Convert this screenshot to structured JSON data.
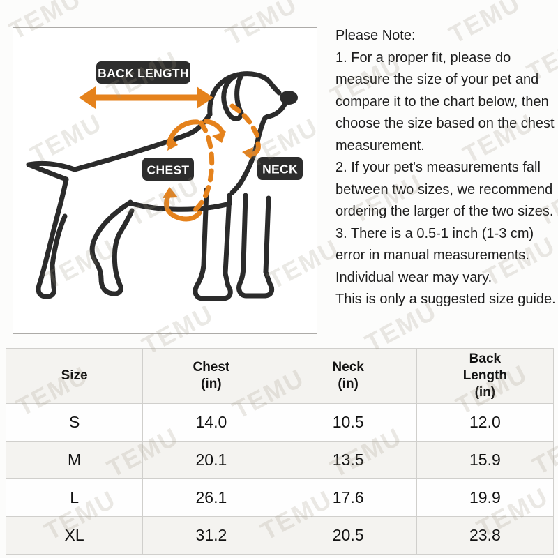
{
  "watermark": {
    "text": "TEMU"
  },
  "diagram": {
    "labels": {
      "back_length": "BACK LENGTH",
      "chest": "CHEST",
      "neck": "NECK"
    },
    "colors": {
      "accent_orange": "#E5821C",
      "line_dark": "#2B2B2B",
      "badge_bg": "#2D2D2D",
      "badge_text": "#FFFFFF"
    }
  },
  "note": {
    "text": "Please Note:\n1. For a proper fit, please do\nmeasure the size of your pet and\ncompare it to the chart below, then\nchoose the size based on the chest\nmeasurement.\n2. If your pet's measurements fall\nbetween two sizes, we recommend\nordering the larger of the two sizes.\n3. There is a 0.5-1 inch (1-3 cm)\nerror in manual measurements.\nIndividual wear may vary.\nThis is only a suggested size guide."
  },
  "size_table": {
    "columns": [
      "Size",
      "Chest\n(in)",
      "Neck\n(in)",
      "Back\nLength\n(in)"
    ],
    "rows": [
      {
        "size": "S",
        "chest": "14.0",
        "neck": "10.5",
        "back_length": "12.0"
      },
      {
        "size": "M",
        "chest": "20.1",
        "neck": "13.5",
        "back_length": "15.9"
      },
      {
        "size": "L",
        "chest": "26.1",
        "neck": "17.6",
        "back_length": "19.9"
      },
      {
        "size": "XL",
        "chest": "31.2",
        "neck": "20.5",
        "back_length": "23.8"
      }
    ]
  }
}
